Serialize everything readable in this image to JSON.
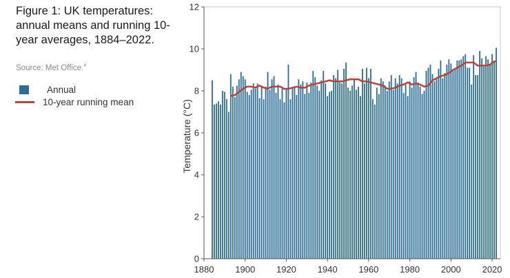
{
  "figure": {
    "title": "Figure 1: UK temperatures: annual means and running 10-year averages, 1884–2022.",
    "source": "Source: Met Office.",
    "source_note": "4"
  },
  "colors": {
    "bar": "#2d6e96",
    "line": "#b5423c",
    "axis": "#555555",
    "frame": "#c8c8c8"
  },
  "chart_data": {
    "type": "bar",
    "title": "Figure 1: UK temperatures: annual means and running 10-year averages, 1884–2022.",
    "xlabel": "",
    "ylabel": "Temperature (°C)",
    "xlim": [
      1880,
      2024
    ],
    "ylim": [
      0,
      12
    ],
    "x_ticks": [
      1880,
      1900,
      1920,
      1940,
      1960,
      1980,
      2000,
      2020
    ],
    "y_ticks": [
      0,
      2,
      4,
      6,
      8,
      10,
      12
    ],
    "grid": false,
    "legend_position": "left",
    "x": [
      1884,
      1885,
      1886,
      1887,
      1888,
      1889,
      1890,
      1891,
      1892,
      1893,
      1894,
      1895,
      1896,
      1897,
      1898,
      1899,
      1900,
      1901,
      1902,
      1903,
      1904,
      1905,
      1906,
      1907,
      1908,
      1909,
      1910,
      1911,
      1912,
      1913,
      1914,
      1915,
      1916,
      1917,
      1918,
      1919,
      1920,
      1921,
      1922,
      1923,
      1924,
      1925,
      1926,
      1927,
      1928,
      1929,
      1930,
      1931,
      1932,
      1933,
      1934,
      1935,
      1936,
      1937,
      1938,
      1939,
      1940,
      1941,
      1942,
      1943,
      1944,
      1945,
      1946,
      1947,
      1948,
      1949,
      1950,
      1951,
      1952,
      1953,
      1954,
      1955,
      1956,
      1957,
      1958,
      1959,
      1960,
      1961,
      1962,
      1963,
      1964,
      1965,
      1966,
      1967,
      1968,
      1969,
      1970,
      1971,
      1972,
      1973,
      1974,
      1975,
      1976,
      1977,
      1978,
      1979,
      1980,
      1981,
      1982,
      1983,
      1984,
      1985,
      1986,
      1987,
      1988,
      1989,
      1990,
      1991,
      1992,
      1993,
      1994,
      1995,
      1996,
      1997,
      1998,
      1999,
      2000,
      2001,
      2002,
      2003,
      2004,
      2005,
      2006,
      2007,
      2008,
      2009,
      2010,
      2011,
      2012,
      2013,
      2014,
      2015,
      2016,
      2017,
      2018,
      2019,
      2020,
      2021,
      2022
    ],
    "series": [
      {
        "name": "Annual",
        "type": "bar",
        "values": [
          8.5,
          7.35,
          7.4,
          7.5,
          7.35,
          8.0,
          7.95,
          7.6,
          7.0,
          8.8,
          8.2,
          7.7,
          8.25,
          8.55,
          8.9,
          8.7,
          8.55,
          7.95,
          7.8,
          8.05,
          8.35,
          8.1,
          8.35,
          7.65,
          8.2,
          7.6,
          8.2,
          8.9,
          8.05,
          8.55,
          8.7,
          7.9,
          8.3,
          7.6,
          8.1,
          7.45,
          8.1,
          9.25,
          7.6,
          8.15,
          8.2,
          7.8,
          8.55,
          8.3,
          8.45,
          7.85,
          8.4,
          7.9,
          8.4,
          8.95,
          8.65,
          8.25,
          8.0,
          8.5,
          8.95,
          8.35,
          7.75,
          7.95,
          8.0,
          8.75,
          8.6,
          9.0,
          8.4,
          8.35,
          9.05,
          9.35,
          8.15,
          8.0,
          8.25,
          8.55,
          8.05,
          8.2,
          7.75,
          9.05,
          8.35,
          9.1,
          8.6,
          9.05,
          7.6,
          7.35,
          8.15,
          7.85,
          8.6,
          8.45,
          8.25,
          8.0,
          8.45,
          8.75,
          8.05,
          8.6,
          8.35,
          8.75,
          8.6,
          7.9,
          8.3,
          7.75,
          8.45,
          8.15,
          8.65,
          8.9,
          8.4,
          8.2,
          7.85,
          8.0,
          8.95,
          9.1,
          9.25,
          8.8,
          8.45,
          8.55,
          9.05,
          9.45,
          8.6,
          8.85,
          9.25,
          9.5,
          9.3,
          8.95,
          9.0,
          9.45,
          9.45,
          9.5,
          9.65,
          9.75,
          9.1,
          9.1,
          8.3,
          9.7,
          8.75,
          8.75,
          9.9,
          9.55,
          9.15,
          9.65,
          9.5,
          9.3,
          9.75,
          9.4,
          10.05
        ]
      },
      {
        "name": "10-year running mean",
        "type": "line",
        "x": [
          1893,
          1895,
          1897,
          1899,
          1901,
          1903,
          1905,
          1907,
          1909,
          1911,
          1913,
          1915,
          1917,
          1919,
          1921,
          1923,
          1925,
          1927,
          1929,
          1931,
          1933,
          1935,
          1937,
          1939,
          1941,
          1943,
          1945,
          1947,
          1949,
          1951,
          1953,
          1955,
          1957,
          1959,
          1961,
          1963,
          1965,
          1967,
          1969,
          1971,
          1973,
          1975,
          1977,
          1979,
          1981,
          1983,
          1985,
          1987,
          1989,
          1991,
          1993,
          1995,
          1997,
          1999,
          2001,
          2003,
          2005,
          2007,
          2009,
          2011,
          2013,
          2015,
          2017,
          2019,
          2021,
          2022
        ],
        "values": [
          7.75,
          7.8,
          7.95,
          8.1,
          8.2,
          8.2,
          8.15,
          8.25,
          8.15,
          8.1,
          8.2,
          8.2,
          8.2,
          8.1,
          8.1,
          8.15,
          8.2,
          8.15,
          8.15,
          8.25,
          8.3,
          8.35,
          8.4,
          8.45,
          8.5,
          8.45,
          8.45,
          8.45,
          8.5,
          8.55,
          8.55,
          8.55,
          8.45,
          8.45,
          8.4,
          8.35,
          8.3,
          8.25,
          8.1,
          8.1,
          8.15,
          8.25,
          8.3,
          8.4,
          8.3,
          8.35,
          8.3,
          8.2,
          8.25,
          8.5,
          8.6,
          8.7,
          8.75,
          8.85,
          9.0,
          9.1,
          9.2,
          9.35,
          9.35,
          9.35,
          9.2,
          9.2,
          9.2,
          9.25,
          9.4,
          9.4
        ]
      }
    ]
  }
}
